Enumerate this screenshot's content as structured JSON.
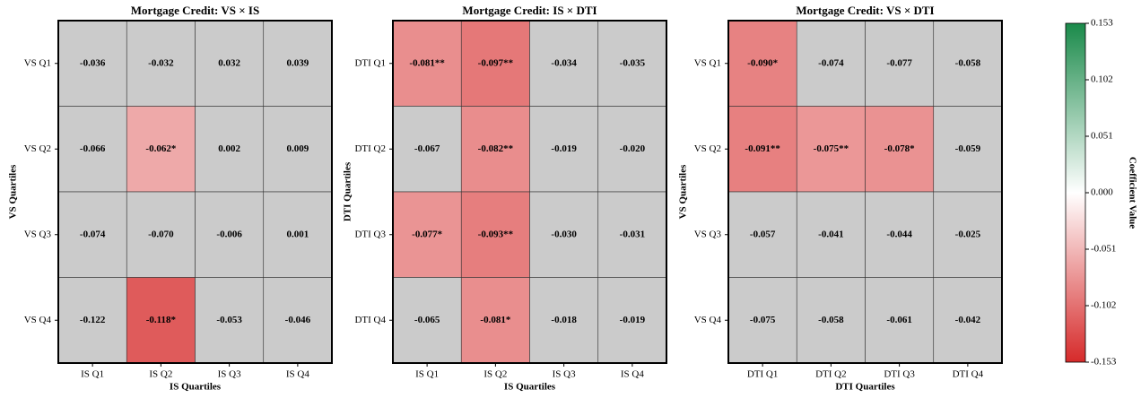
{
  "chart_data": [
    {
      "type": "heatmap",
      "title": "Mortgage Credit: VS × IS",
      "xlabel": "IS Quartiles",
      "ylabel": "VS Quartiles",
      "x": [
        "IS Q1",
        "IS Q2",
        "IS Q3",
        "IS Q4"
      ],
      "y": [
        "VS Q1",
        "VS Q2",
        "VS Q3",
        "VS Q4"
      ],
      "values": [
        [
          -0.036,
          -0.032,
          0.032,
          0.039
        ],
        [
          -0.066,
          -0.062,
          0.002,
          0.009
        ],
        [
          -0.074,
          -0.07,
          -0.006,
          0.001
        ],
        [
          -0.122,
          -0.118,
          -0.053,
          -0.046
        ]
      ],
      "value_labels": [
        [
          "-0.036",
          "-0.032",
          "0.032",
          "0.039"
        ],
        [
          "-0.066",
          "-0.062*",
          "0.002",
          "0.009"
        ],
        [
          "-0.074",
          "-0.070",
          "-0.006",
          "0.001"
        ],
        [
          "-0.122",
          "-0.118*",
          "-0.053",
          "-0.046"
        ]
      ],
      "nonsignificant_color": "#cbcbcb"
    },
    {
      "type": "heatmap",
      "title": "Mortgage Credit: IS × DTI",
      "xlabel": "IS Quartiles",
      "ylabel": "DTI Quartiles",
      "x": [
        "IS Q1",
        "IS Q2",
        "IS Q3",
        "IS Q4"
      ],
      "y": [
        "DTI Q1",
        "DTI Q2",
        "DTI Q3",
        "DTI Q4"
      ],
      "values": [
        [
          -0.081,
          -0.097,
          -0.034,
          -0.035
        ],
        [
          -0.067,
          -0.082,
          -0.019,
          -0.02
        ],
        [
          -0.077,
          -0.093,
          -0.03,
          -0.031
        ],
        [
          -0.065,
          -0.081,
          -0.018,
          -0.019
        ]
      ],
      "value_labels": [
        [
          "-0.081**",
          "-0.097**",
          "-0.034",
          "-0.035"
        ],
        [
          "-0.067",
          "-0.082**",
          "-0.019",
          "-0.020"
        ],
        [
          "-0.077*",
          "-0.093**",
          "-0.030",
          "-0.031"
        ],
        [
          "-0.065",
          "-0.081*",
          "-0.018",
          "-0.019"
        ]
      ],
      "nonsignificant_color": "#cbcbcb"
    },
    {
      "type": "heatmap",
      "title": "Mortgage Credit: VS × DTI",
      "xlabel": "DTI Quartiles",
      "ylabel": "VS Quartiles",
      "x": [
        "DTI Q1",
        "DTI Q2",
        "DTI Q3",
        "DTI Q4"
      ],
      "y": [
        "VS Q1",
        "VS Q2",
        "VS Q3",
        "VS Q4"
      ],
      "values": [
        [
          -0.09,
          -0.074,
          -0.077,
          -0.058
        ],
        [
          -0.091,
          -0.075,
          -0.078,
          -0.059
        ],
        [
          -0.057,
          -0.041,
          -0.044,
          -0.025
        ],
        [
          -0.075,
          -0.058,
          -0.061,
          -0.042
        ]
      ],
      "value_labels": [
        [
          "-0.090*",
          "-0.074",
          "-0.077",
          "-0.058"
        ],
        [
          "-0.091**",
          "-0.075**",
          "-0.078*",
          "-0.059"
        ],
        [
          "-0.057",
          "-0.041",
          "-0.044",
          "-0.025"
        ],
        [
          "-0.075",
          "-0.058",
          "-0.061",
          "-0.042"
        ]
      ],
      "nonsignificant_color": "#cbcbcb"
    },
    {
      "type": "colorbar",
      "label": "Coefficient Value",
      "ylim": [
        -0.153,
        0.153
      ],
      "yticks": [
        0.153,
        0.102,
        0.051,
        {
          "value": 0,
          "label": "0.000"
        },
        -0.051,
        -0.102,
        -0.153
      ],
      "colors": [
        "#d62a2a",
        "#ffffff",
        "#1a8a4a"
      ]
    }
  ]
}
